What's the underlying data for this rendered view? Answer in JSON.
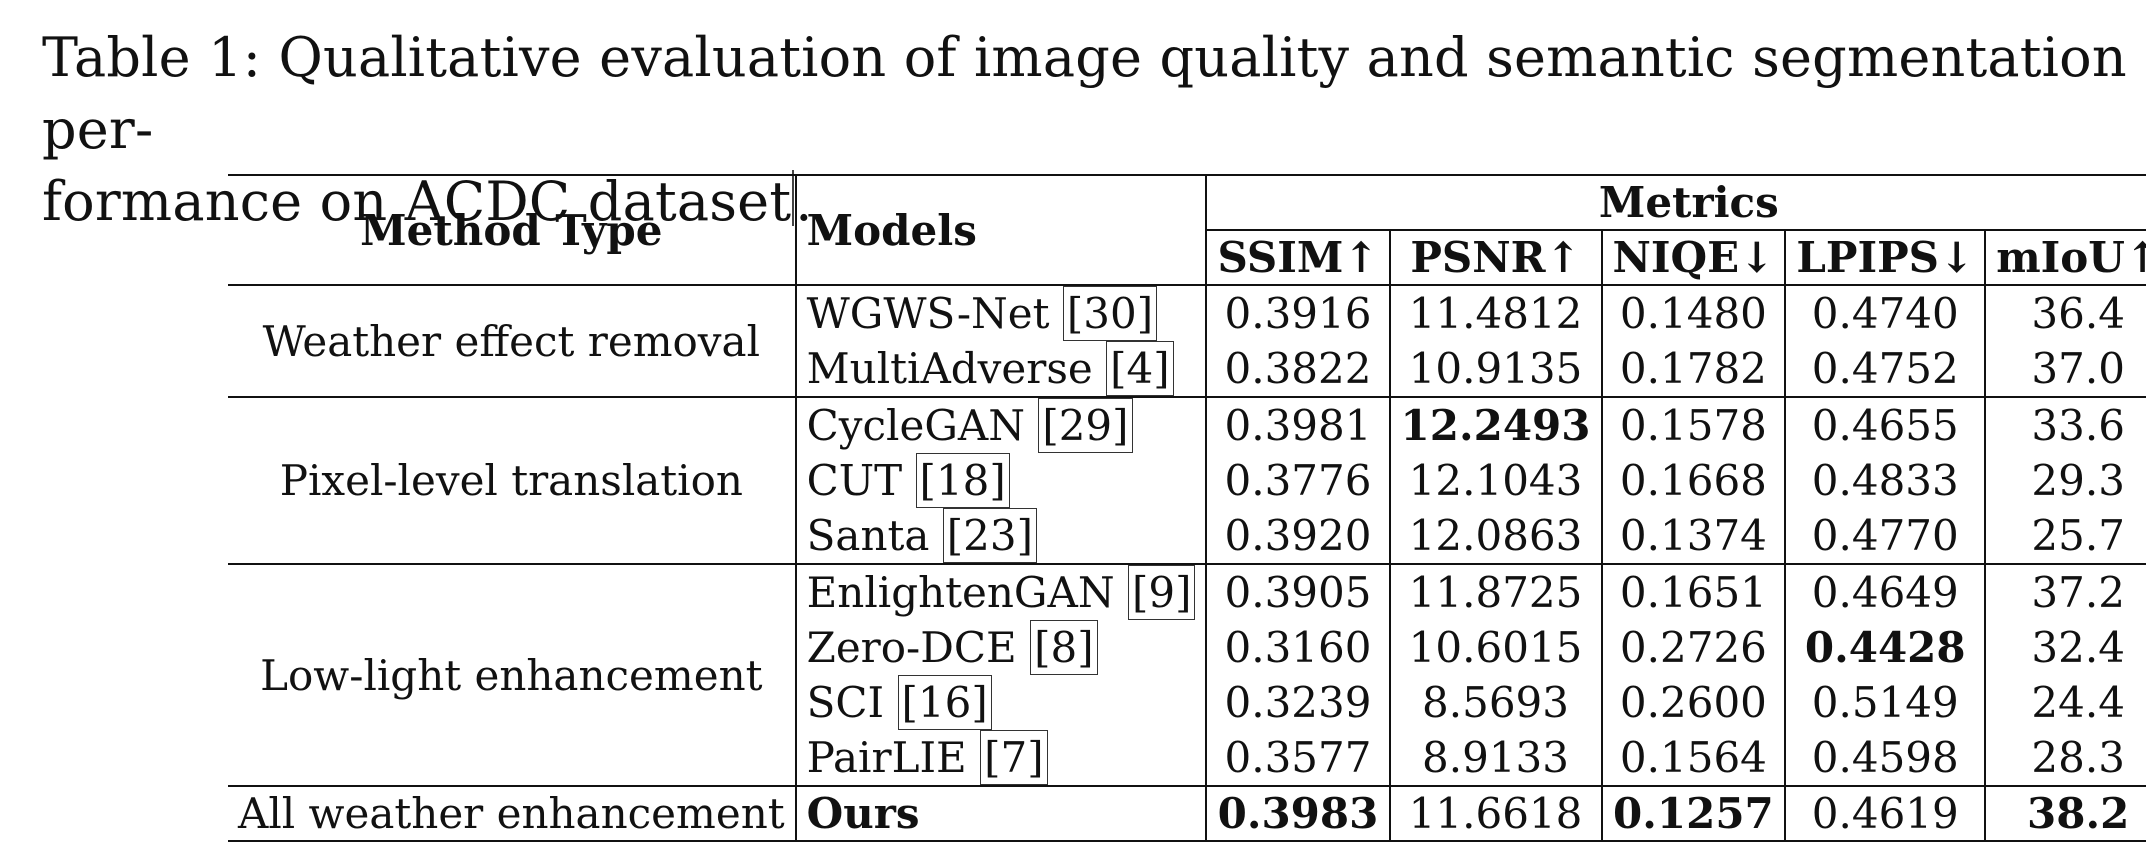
{
  "caption": {
    "line1": "Table 1: Qualitative evaluation of image quality and semantic segmentation per-",
    "line2_before_caret": "formance on ACDC dataset",
    "line2_after_caret": "."
  },
  "table": {
    "header": {
      "method_type": "Method Type",
      "models": "Models",
      "metrics": "Metrics",
      "cols": [
        "SSIM↑",
        "PSNR↑",
        "NIQE↓",
        "LPIPS↓",
        "mIoU↑"
      ]
    },
    "groups": [
      {
        "type": "Weather effect removal",
        "rows": [
          {
            "model": "WGWS-Net",
            "ref": "30",
            "vals": [
              "0.3916",
              "11.4812",
              "0.1480",
              "0.4740",
              "36.4"
            ]
          },
          {
            "model": "MultiAdverse",
            "ref": "4",
            "vals": [
              "0.3822",
              "10.9135",
              "0.1782",
              "0.4752",
              "37.0"
            ]
          }
        ]
      },
      {
        "type": "Pixel-level translation",
        "rows": [
          {
            "model": "CycleGAN",
            "ref": "29",
            "vals": [
              "0.3981",
              "12.2493",
              "0.1578",
              "0.4655",
              "33.6"
            ]
          },
          {
            "model": "CUT",
            "ref": "18",
            "vals": [
              "0.3776",
              "12.1043",
              "0.1668",
              "0.4833",
              "29.3"
            ]
          },
          {
            "model": "Santa",
            "ref": "23",
            "vals": [
              "0.3920",
              "12.0863",
              "0.1374",
              "0.4770",
              "25.7"
            ]
          }
        ]
      },
      {
        "type": "Low-light enhancement",
        "rows": [
          {
            "model": "EnlightenGAN",
            "ref": "9",
            "vals": [
              "0.3905",
              "11.8725",
              "0.1651",
              "0.4649",
              "37.2"
            ]
          },
          {
            "model": "Zero-DCE",
            "ref": "8",
            "vals": [
              "0.3160",
              "10.6015",
              "0.2726",
              "0.4428",
              "32.4"
            ]
          },
          {
            "model": "SCI",
            "ref": "16",
            "vals": [
              "0.3239",
              "8.5693",
              "0.2600",
              "0.5149",
              "24.4"
            ]
          },
          {
            "model": "PairLIE",
            "ref": "7",
            "vals": [
              "0.3577",
              "8.9133",
              "0.1564",
              "0.4598",
              "28.3"
            ]
          }
        ]
      },
      {
        "type": "All weather enhancement",
        "rows": [
          {
            "model": "Ours",
            "ref": "",
            "vals": [
              "0.3983",
              "11.6618",
              "0.1257",
              "0.4619",
              "38.2"
            ]
          }
        ]
      }
    ]
  }
}
